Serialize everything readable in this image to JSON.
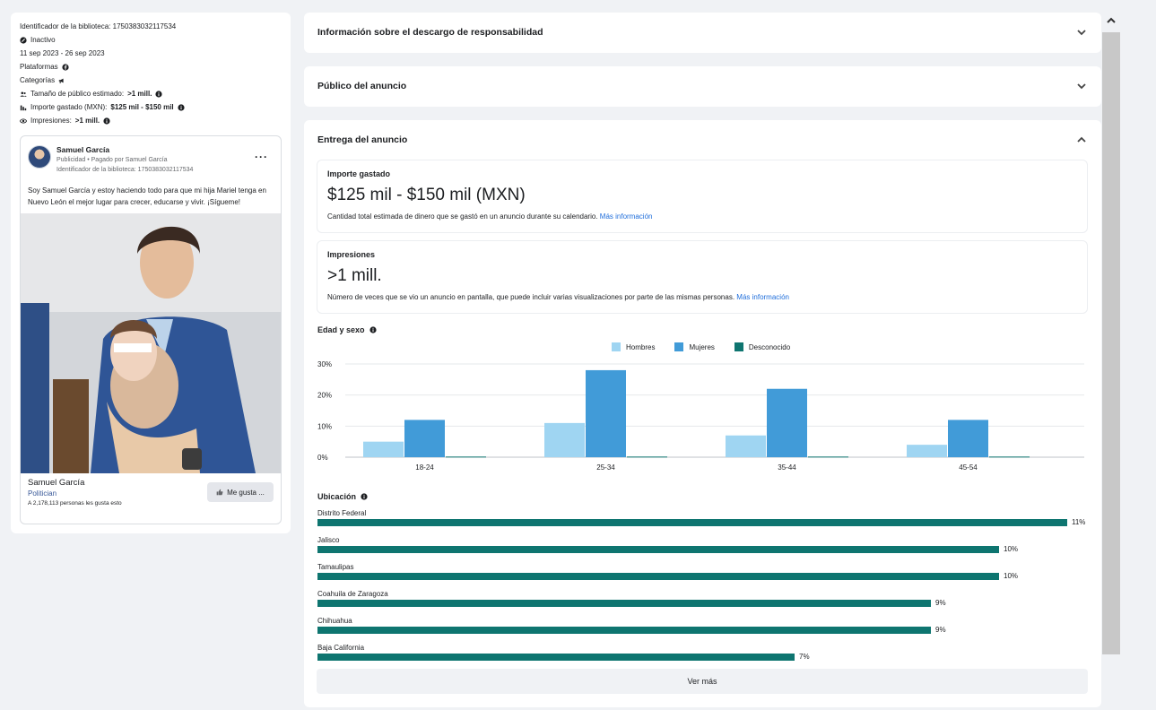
{
  "left_panel": {
    "library_id_line": "Identificador de la biblioteca: 1750383032117534",
    "status": "Inactivo",
    "dates": "11 sep 2023 - 26 sep 2023",
    "platforms_label": "Plataformas",
    "categories_label": "Categorías",
    "audience_label": "Tamaño de público estimado:",
    "audience_value": ">1 mill.",
    "spend_label": "Importe gastado (MXN):",
    "spend_value": "$125 mil - $150 mil",
    "impressions_label": "Impresiones:",
    "impressions_value": ">1 mill."
  },
  "ad_card": {
    "page_name": "Samuel García",
    "sponsor_line": "Publicidad • Pagado por Samuel García",
    "library_id": "Identificador de la biblioteca: 1750383032117534",
    "more": "···",
    "body_text": "Soy Samuel García y estoy haciendo todo para que mi hija Mariel tenga en Nuevo León el mejor lugar para crecer, educarse y vivir. ¡Sígueme!",
    "footer_name": "Samuel García",
    "footer_category": "Politician",
    "footer_likes": "A 2,178,113 personas les gusta esto",
    "like_button": "Me gusta ..."
  },
  "sections": {
    "disclaimer_title": "Información sobre el descargo de responsabilidad",
    "audience_title": "Público del anuncio",
    "delivery_title": "Entrega del anuncio"
  },
  "delivery": {
    "spend_label": "Importe gastado",
    "spend_value": "$125 mil - $150 mil (MXN)",
    "spend_desc": "Cantidad total estimada de dinero que se gastó en un anuncio durante su calendario.",
    "impressions_label": "Impresiones",
    "impressions_value": ">1 mill.",
    "impressions_desc": "Número de veces que se vio un anuncio en pantalla, que puede incluir varias visualizaciones por parte de las mismas personas.",
    "more_info": "Más información",
    "age_gender_title": "Edad y sexo",
    "location_title": "Ubicación",
    "see_more": "Ver más"
  },
  "chart_data": {
    "type": "bar",
    "title": "Edad y sexo",
    "categories": [
      "18-24",
      "25-34",
      "35-44",
      "45-54"
    ],
    "series": [
      {
        "name": "Hombres",
        "values": [
          5,
          11,
          7,
          4
        ],
        "color": "#9fd5f2"
      },
      {
        "name": "Mujeres",
        "values": [
          12,
          28,
          22,
          12
        ],
        "color": "#419bd8"
      },
      {
        "name": "Desconocido",
        "values": [
          0.2,
          0.2,
          0.2,
          0.2
        ],
        "color": "#0e7570"
      }
    ],
    "y_ticks": [
      "0%",
      "10%",
      "20%",
      "30%"
    ],
    "ylim": [
      0,
      30
    ],
    "grid": true,
    "legend": "top-center"
  },
  "locations": [
    {
      "name": "Distrito Federal",
      "value": 11,
      "label": "11%"
    },
    {
      "name": "Jalisco",
      "value": 10,
      "label": "10%"
    },
    {
      "name": "Tamaulipas",
      "value": 10,
      "label": "10%"
    },
    {
      "name": "Coahuila de Zaragoza",
      "value": 9,
      "label": "9%"
    },
    {
      "name": "Chihuahua",
      "value": 9,
      "label": "9%"
    },
    {
      "name": "Baja California",
      "value": 7,
      "label": "7%"
    }
  ],
  "colors": {
    "accent_link": "#216fdb",
    "location_bar": "#0e7570"
  }
}
